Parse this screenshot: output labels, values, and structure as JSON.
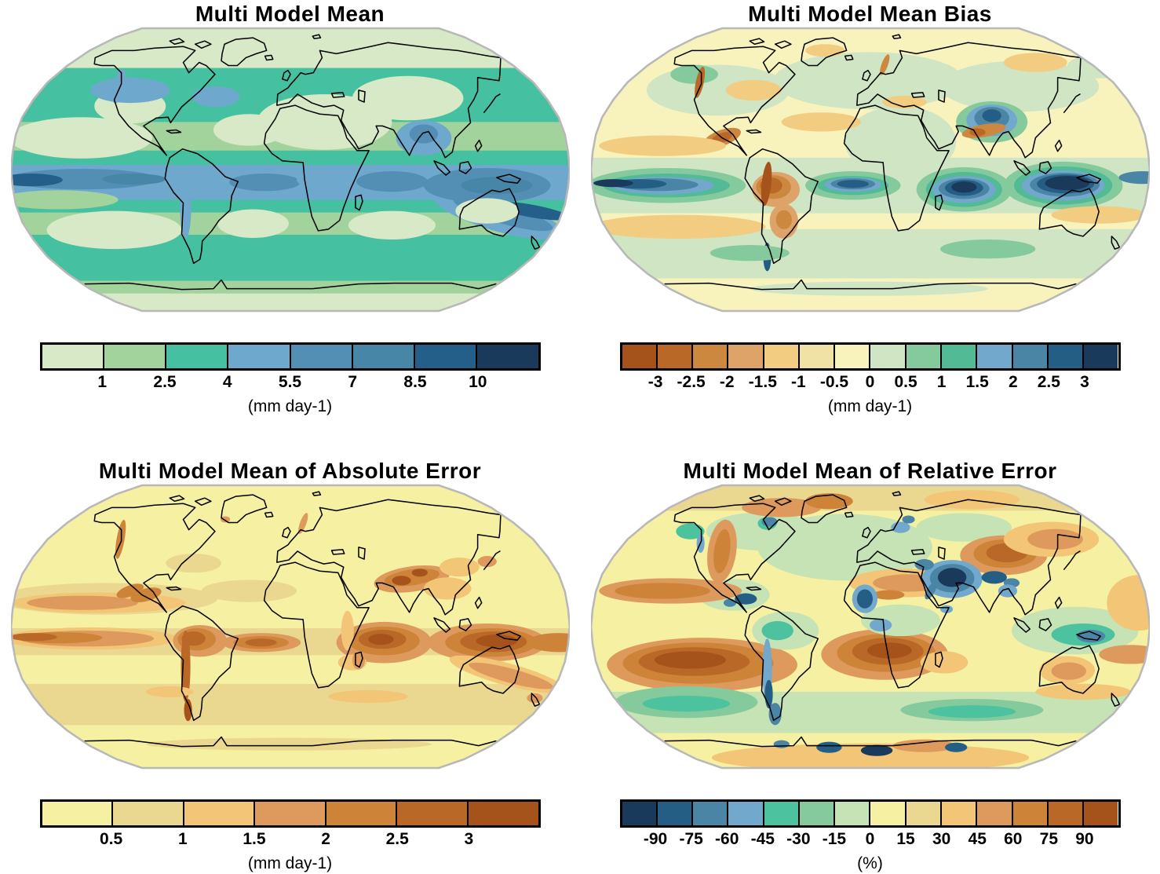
{
  "figure": {
    "panels": [
      {
        "id": "mean",
        "title": "Multi Model Mean",
        "unit": "(mm day-1)",
        "ticks": [
          "1",
          "2.5",
          "4",
          "5.5",
          "7",
          "8.5",
          "10"
        ],
        "colors": [
          "#d7e9c7",
          "#a3d39c",
          "#45c0a0",
          "#6fa8cd",
          "#538fb5",
          "#4886a8",
          "#235f88",
          "#1a3a5c"
        ]
      },
      {
        "id": "bias",
        "title": "Multi Model Mean Bias",
        "unit": "(mm day-1)",
        "ticks": [
          "-3",
          "-2.5",
          "-2",
          "-1.5",
          "-1",
          "-0.5",
          "0",
          "0.5",
          "1",
          "1.5",
          "2",
          "2.5",
          "3"
        ],
        "colors": [
          "#a5531a",
          "#b96828",
          "#cd8840",
          "#dda368",
          "#f2cc80",
          "#f0e2a4",
          "#f8f3bc",
          "#cfe5c3",
          "#84ca9c",
          "#52bb96",
          "#72a8cc",
          "#4a85a5",
          "#255e84",
          "#1a3a5c"
        ]
      },
      {
        "id": "abs-error",
        "title": "Multi Model Mean of Absolute Error",
        "unit": "(mm day-1)",
        "ticks": [
          "0.5",
          "1",
          "1.5",
          "2",
          "2.5",
          "3"
        ],
        "colors": [
          "#f6f1a2",
          "#ead890",
          "#f3c577",
          "#dd9a5c",
          "#cd8338",
          "#b96828",
          "#a5531a"
        ]
      },
      {
        "id": "rel-error",
        "title": "Multi Model Mean of Relative Error",
        "unit": "(%)",
        "ticks": [
          "-90",
          "-75",
          "-60",
          "-45",
          "-30",
          "-15",
          "0",
          "15",
          "30",
          "45",
          "60",
          "75",
          "90"
        ],
        "colors": [
          "#1a3a5c",
          "#255e84",
          "#4a85a5",
          "#72a8cc",
          "#4cc39e",
          "#84ca9c",
          "#c5e3b4",
          "#f6f1a2",
          "#ead890",
          "#f3c577",
          "#dd9a5c",
          "#cd8338",
          "#b96828",
          "#a5531a"
        ]
      }
    ]
  },
  "chart_data": [
    {
      "type": "heatmap",
      "title": "Multi Model Mean",
      "units": "mm day-1",
      "projection": "Robinson world map",
      "legend_position": "bottom horizontal colorbar",
      "colorbar_levels": [
        1,
        2.5,
        4,
        5.5,
        7,
        8.5,
        10
      ],
      "palette": [
        "#d7e9c7",
        "#a3d39c",
        "#45c0a0",
        "#6fa8cd",
        "#538fb5",
        "#4886a8",
        "#235f88",
        "#1a3a5c"
      ]
    },
    {
      "type": "heatmap",
      "title": "Multi Model Mean Bias",
      "units": "mm day-1",
      "projection": "Robinson world map",
      "legend_position": "bottom horizontal colorbar",
      "colorbar_levels": [
        -3,
        -2.5,
        -2,
        -1.5,
        -1,
        -0.5,
        0,
        0.5,
        1,
        1.5,
        2,
        2.5,
        3
      ],
      "palette": [
        "#a5531a",
        "#b96828",
        "#cd8840",
        "#dda368",
        "#f2cc80",
        "#f0e2a4",
        "#f8f3bc",
        "#cfe5c3",
        "#84ca9c",
        "#52bb96",
        "#72a8cc",
        "#4a85a5",
        "#255e84",
        "#1a3a5c"
      ]
    },
    {
      "type": "heatmap",
      "title": "Multi Model Mean of Absolute Error",
      "units": "mm day-1",
      "projection": "Robinson world map",
      "legend_position": "bottom horizontal colorbar",
      "colorbar_levels": [
        0.5,
        1,
        1.5,
        2,
        2.5,
        3
      ],
      "palette": [
        "#f6f1a2",
        "#ead890",
        "#f3c577",
        "#dd9a5c",
        "#cd8338",
        "#b96828",
        "#a5531a"
      ]
    },
    {
      "type": "heatmap",
      "title": "Multi Model Mean of Relative Error",
      "units": "%",
      "projection": "Robinson world map",
      "legend_position": "bottom horizontal colorbar",
      "colorbar_levels": [
        -90,
        -75,
        -60,
        -45,
        -30,
        -15,
        0,
        15,
        30,
        45,
        60,
        75,
        90
      ],
      "palette": [
        "#1a3a5c",
        "#255e84",
        "#4a85a5",
        "#72a8cc",
        "#4cc39e",
        "#84ca9c",
        "#c5e3b4",
        "#f6f1a2",
        "#ead890",
        "#f3c577",
        "#dd9a5c",
        "#cd8338",
        "#b96828",
        "#a5531a"
      ]
    }
  ]
}
